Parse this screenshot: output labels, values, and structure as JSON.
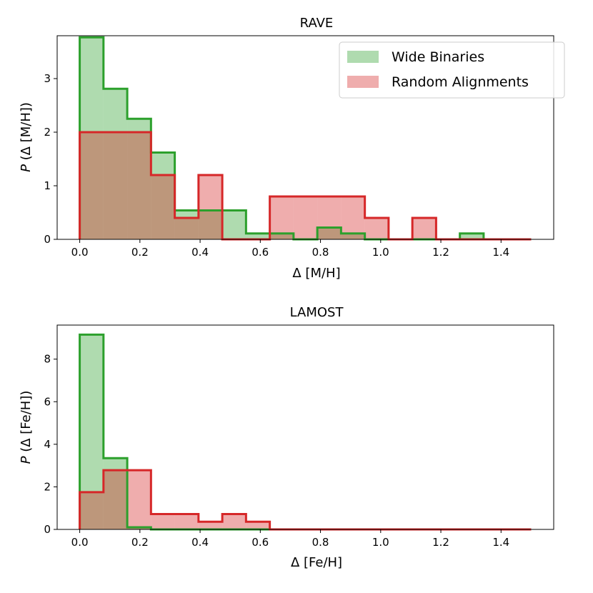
{
  "colors": {
    "wide": "#2ca02c",
    "wide_fill": "#2ca02c",
    "random": "#d62728",
    "random_fill": "#e8797a"
  },
  "chart_data": [
    {
      "type": "histogram",
      "title": "RAVE",
      "xlabel": "Δ [M/H]",
      "ylabel_italic": "P",
      "ylabel_rest": " (Δ [M/H])",
      "xlim": [
        -0.075,
        1.575
      ],
      "ylim": [
        0,
        3.8
      ],
      "xticks": [
        0.0,
        0.2,
        0.4,
        0.6,
        0.8,
        1.0,
        1.2,
        1.4
      ],
      "xtick_labels": [
        "0.0",
        "0.2",
        "0.4",
        "0.6",
        "0.8",
        "1.0",
        "1.2",
        "1.4"
      ],
      "yticks": [
        0,
        1,
        2,
        3
      ],
      "ytick_labels": [
        "0",
        "1",
        "2",
        "3"
      ],
      "bin_edges": [
        0.0,
        0.0789,
        0.1579,
        0.2368,
        0.3158,
        0.3947,
        0.4737,
        0.5526,
        0.6316,
        0.7105,
        0.7895,
        0.8684,
        0.9474,
        1.0263,
        1.1053,
        1.1842,
        1.2632,
        1.3421,
        1.4211,
        1.5
      ],
      "legend": {
        "placement": "top-right",
        "entries": [
          "Wide Binaries",
          "Random Alignments"
        ]
      },
      "series": [
        {
          "name": "Wide Binaries",
          "values": [
            3.77,
            2.81,
            2.25,
            1.62,
            0.54,
            0.54,
            0.54,
            0.11,
            0.11,
            0.0,
            0.22,
            0.11,
            0.0,
            0.0,
            0.0,
            0.0,
            0.11,
            0.0,
            0.0
          ]
        },
        {
          "name": "Random Alignments",
          "values": [
            2.0,
            2.0,
            2.0,
            1.2,
            0.4,
            1.2,
            0.0,
            0.0,
            0.8,
            0.8,
            0.8,
            0.8,
            0.4,
            0.0,
            0.4,
            0.0,
            0.0,
            0.0,
            0.0
          ]
        }
      ]
    },
    {
      "type": "histogram",
      "title": "LAMOST",
      "xlabel": "Δ [Fe/H]",
      "ylabel_italic": "P",
      "ylabel_rest": " (Δ [Fe/H])",
      "xlim": [
        -0.075,
        1.575
      ],
      "ylim": [
        0,
        9.6
      ],
      "xticks": [
        0.0,
        0.2,
        0.4,
        0.6,
        0.8,
        1.0,
        1.2,
        1.4
      ],
      "xtick_labels": [
        "0.0",
        "0.2",
        "0.4",
        "0.6",
        "0.8",
        "1.0",
        "1.2",
        "1.4"
      ],
      "yticks": [
        0,
        2,
        4,
        6,
        8
      ],
      "ytick_labels": [
        "0",
        "2",
        "4",
        "6",
        "8"
      ],
      "bin_edges": [
        0.0,
        0.0789,
        0.1579,
        0.2368,
        0.3158,
        0.3947,
        0.4737,
        0.5526,
        0.6316,
        0.7105,
        0.7895,
        0.8684,
        0.9474,
        1.0263,
        1.1053,
        1.1842,
        1.2632,
        1.3421,
        1.4211,
        1.5
      ],
      "series": [
        {
          "name": "Wide Binaries",
          "values": [
            9.15,
            3.35,
            0.1,
            0.0,
            0.0,
            0.0,
            0.0,
            0.0,
            0.0,
            0.0,
            0.0,
            0.0,
            0.0,
            0.0,
            0.0,
            0.0,
            0.0,
            0.0,
            0.0
          ]
        },
        {
          "name": "Random Alignments",
          "values": [
            1.75,
            2.78,
            2.78,
            0.72,
            0.72,
            0.36,
            0.72,
            0.36,
            0.0,
            0.0,
            0.0,
            0.0,
            0.0,
            0.0,
            0.0,
            0.0,
            0.0,
            0.0,
            0.0
          ]
        }
      ]
    }
  ]
}
